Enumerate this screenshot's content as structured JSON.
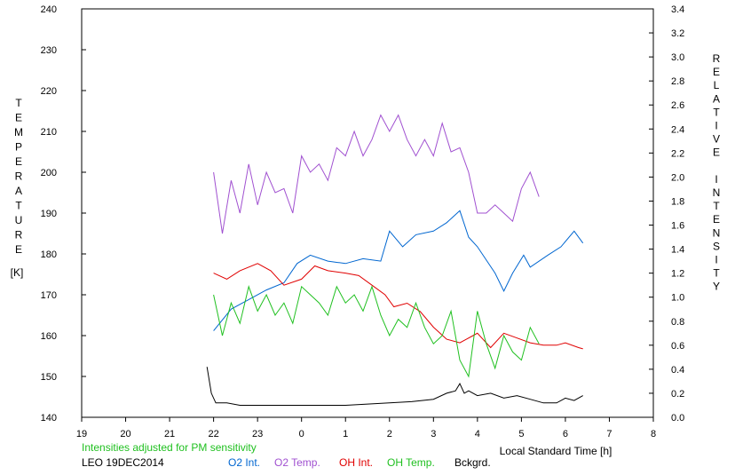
{
  "chart_data": {
    "type": "line",
    "title": "",
    "left_axis_letters": [
      "T",
      "E",
      "M",
      "P",
      "E",
      "R",
      "A",
      "T",
      "U",
      "R",
      "E"
    ],
    "left_axis_unit": "[K]",
    "right_axis_letters": [
      "R",
      "E",
      "L",
      "A",
      "T",
      "I",
      "V",
      "E",
      "",
      "I",
      "N",
      "T",
      "E",
      "N",
      "S",
      "I",
      "T",
      "Y"
    ],
    "xlabel": "Local Standard Time [h]",
    "note": "Intensities adjusted for PM sensitivity",
    "station_date": "LEO 19DEC2014",
    "xlim": [
      19,
      32
    ],
    "ylim_left": [
      140,
      240
    ],
    "ylim_right": [
      0.0,
      3.4
    ],
    "x_tick_labels": [
      "19",
      "20",
      "21",
      "22",
      "23",
      "0",
      "1",
      "2",
      "3",
      "4",
      "5",
      "6",
      "7",
      "8"
    ],
    "y_left_tick_labels": [
      "140",
      "150",
      "160",
      "170",
      "180",
      "190",
      "200",
      "210",
      "220",
      "230",
      "240"
    ],
    "y_right_tick_labels": [
      "0.0",
      "0.2",
      "0.4",
      "0.6",
      "0.8",
      "1.0",
      "1.2",
      "1.4",
      "1.6",
      "1.8",
      "2.0",
      "2.2",
      "2.4",
      "2.6",
      "2.8",
      "3.0",
      "3.2",
      "3.4"
    ],
    "series": [
      {
        "name": "O2 Int.",
        "axis": "right",
        "color": "#0066d0",
        "x": [
          22.0,
          22.4,
          22.8,
          23.2,
          23.6,
          23.9,
          24.2,
          24.6,
          25.0,
          25.4,
          25.8,
          26.0,
          26.3,
          26.6,
          27.0,
          27.3,
          27.6,
          27.8,
          28.0,
          28.4,
          28.6,
          28.8,
          29.05,
          29.2,
          29.6,
          29.9,
          30.2,
          30.4
        ],
        "y": [
          0.72,
          0.9,
          0.98,
          1.06,
          1.12,
          1.28,
          1.35,
          1.3,
          1.28,
          1.32,
          1.3,
          1.55,
          1.42,
          1.52,
          1.55,
          1.62,
          1.72,
          1.5,
          1.42,
          1.2,
          1.05,
          1.2,
          1.35,
          1.25,
          1.35,
          1.42,
          1.55,
          1.45
        ]
      },
      {
        "name": "O2 Temp.",
        "axis": "left",
        "color": "#a050d0",
        "x": [
          22.0,
          22.2,
          22.4,
          22.6,
          22.8,
          23.0,
          23.2,
          23.4,
          23.6,
          23.8,
          24.0,
          24.2,
          24.4,
          24.6,
          24.8,
          25.0,
          25.2,
          25.4,
          25.6,
          25.8,
          26.0,
          26.2,
          26.4,
          26.6,
          26.8,
          27.0,
          27.2,
          27.4,
          27.6,
          27.8,
          28.0,
          28.2,
          28.4,
          28.6,
          28.8,
          29.0,
          29.2,
          29.4
        ],
        "y": [
          200,
          185,
          198,
          190,
          202,
          192,
          200,
          195,
          196,
          190,
          204,
          200,
          202,
          198,
          206,
          204,
          210,
          204,
          208,
          214,
          210,
          214,
          208,
          204,
          208,
          204,
          212,
          205,
          206,
          200,
          190,
          190,
          192,
          190,
          188,
          196,
          200,
          194
        ]
      },
      {
        "name": "OH Int.",
        "axis": "right",
        "color": "#e00000",
        "x": [
          22.0,
          22.3,
          22.6,
          23.0,
          23.3,
          23.6,
          24.0,
          24.3,
          24.6,
          25.0,
          25.3,
          25.6,
          25.9,
          26.1,
          26.4,
          26.7,
          27.0,
          27.3,
          27.6,
          27.9,
          28.0,
          28.3,
          28.6,
          28.9,
          29.2,
          29.5,
          29.8,
          30.0,
          30.3,
          30.4
        ],
        "y": [
          1.2,
          1.15,
          1.22,
          1.28,
          1.22,
          1.1,
          1.15,
          1.26,
          1.22,
          1.2,
          1.18,
          1.1,
          1.02,
          0.92,
          0.95,
          0.88,
          0.75,
          0.65,
          0.62,
          0.68,
          0.7,
          0.58,
          0.7,
          0.66,
          0.62,
          0.6,
          0.6,
          0.62,
          0.58,
          0.57
        ]
      },
      {
        "name": "OH Temp.",
        "axis": "left",
        "color": "#20c020",
        "x": [
          22.0,
          22.2,
          22.4,
          22.6,
          22.8,
          23.0,
          23.2,
          23.4,
          23.6,
          23.8,
          24.0,
          24.2,
          24.4,
          24.6,
          24.8,
          25.0,
          25.2,
          25.4,
          25.6,
          25.8,
          26.0,
          26.2,
          26.4,
          26.6,
          26.8,
          27.0,
          27.2,
          27.4,
          27.6,
          27.8,
          28.0,
          28.2,
          28.4,
          28.6,
          28.8,
          29.0,
          29.2,
          29.4
        ],
        "y": [
          170,
          160,
          168,
          163,
          172,
          166,
          170,
          165,
          168,
          163,
          172,
          170,
          168,
          165,
          172,
          168,
          170,
          166,
          172,
          165,
          160,
          164,
          162,
          168,
          162,
          158,
          160,
          166,
          154,
          150,
          166,
          158,
          152,
          160,
          156,
          154,
          162,
          158
        ]
      },
      {
        "name": "Bckgrd.",
        "axis": "right",
        "color": "#000000",
        "x": [
          21.85,
          21.95,
          22.05,
          22.3,
          22.6,
          23.0,
          23.5,
          24.0,
          24.5,
          25.0,
          25.5,
          26.0,
          26.5,
          27.0,
          27.3,
          27.5,
          27.6,
          27.7,
          27.8,
          28.0,
          28.3,
          28.6,
          28.9,
          29.2,
          29.5,
          29.8,
          30.0,
          30.2,
          30.4
        ],
        "y": [
          0.42,
          0.2,
          0.12,
          0.12,
          0.1,
          0.1,
          0.1,
          0.1,
          0.1,
          0.1,
          0.11,
          0.12,
          0.13,
          0.15,
          0.2,
          0.22,
          0.28,
          0.2,
          0.22,
          0.18,
          0.2,
          0.16,
          0.18,
          0.15,
          0.12,
          0.12,
          0.16,
          0.14,
          0.18
        ]
      }
    ],
    "legend_position": "bottom",
    "grid": false
  }
}
